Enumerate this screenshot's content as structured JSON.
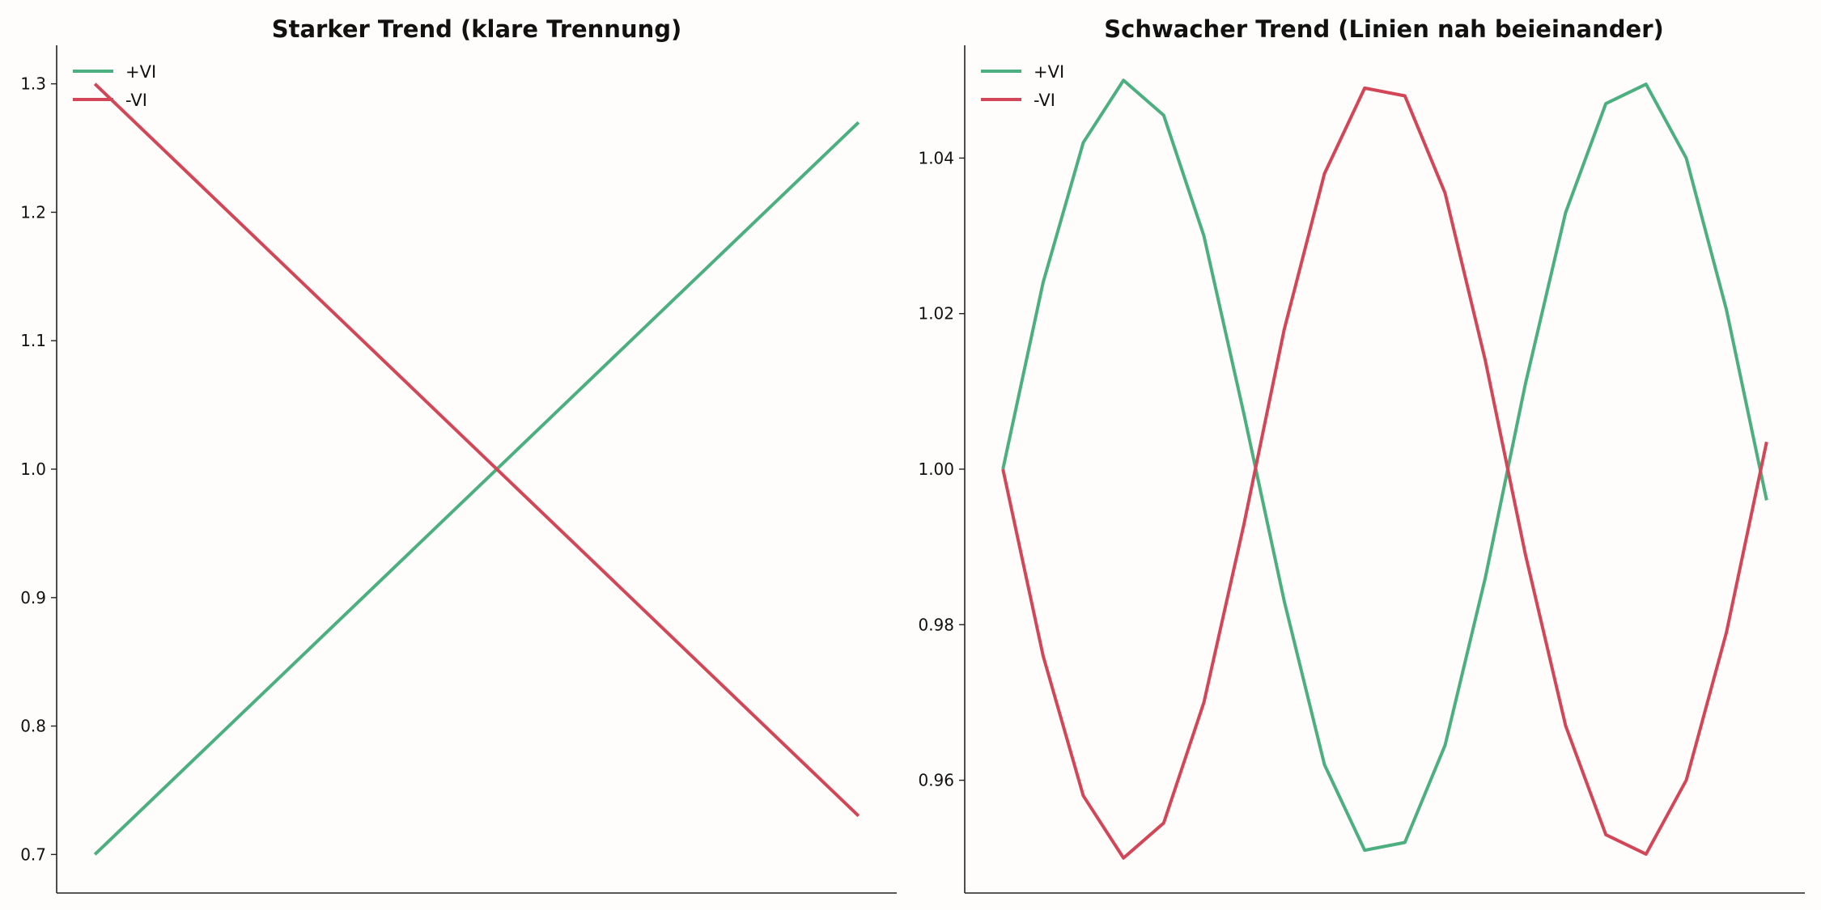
{
  "colors": {
    "plus_vi": "#4caf7f",
    "minus_vi": "#d34657"
  },
  "chart_data": [
    {
      "type": "line",
      "title": "Starker Trend (klare Trennung)",
      "xlabel": "",
      "ylabel": "",
      "x": [
        0,
        1
      ],
      "xlim": [
        -0.05,
        1.05
      ],
      "ylim": [
        0.67,
        1.33
      ],
      "yticks": [
        0.7,
        0.8,
        0.9,
        1.0,
        1.1,
        1.2,
        1.3
      ],
      "ytick_labels": [
        "0.7",
        "0.8",
        "0.9",
        "1.0",
        "1.1",
        "1.2",
        "1.3"
      ],
      "grid": false,
      "legend": "top-left",
      "series": [
        {
          "name": "+VI",
          "color": "#4caf7f",
          "values": [
            0.7,
            1.27
          ]
        },
        {
          "name": "-VI",
          "color": "#d34657",
          "values": [
            1.3,
            0.73
          ]
        }
      ]
    },
    {
      "type": "line",
      "title": "Schwacher Trend (Linien nah beieinander)",
      "xlabel": "",
      "ylabel": "",
      "x": [
        0,
        1,
        2,
        3,
        4,
        5,
        6,
        7,
        8,
        9,
        10,
        11,
        12,
        13,
        14,
        15,
        16,
        17,
        18,
        19
      ],
      "xlim": [
        -0.95,
        19.95
      ],
      "ylim": [
        0.9455,
        1.0545
      ],
      "yticks": [
        0.96,
        0.98,
        1.0,
        1.02,
        1.04
      ],
      "ytick_labels": [
        "0.96",
        "0.98",
        "1.00",
        "1.02",
        "1.04"
      ],
      "grid": false,
      "legend": "top-left",
      "series": [
        {
          "name": "+VI",
          "color": "#4caf7f",
          "values": [
            1.0,
            1.024,
            1.042,
            1.05,
            1.0455,
            1.03,
            1.007,
            0.983,
            0.962,
            0.951,
            0.952,
            0.9645,
            0.986,
            1.011,
            1.033,
            1.047,
            1.0495,
            1.04,
            1.0205,
            0.996
          ]
        },
        {
          "name": "-VI",
          "color": "#d34657",
          "values": [
            1.0,
            0.976,
            0.958,
            0.95,
            0.9545,
            0.97,
            0.993,
            1.018,
            1.038,
            1.049,
            1.048,
            1.0355,
            1.014,
            0.989,
            0.967,
            0.953,
            0.9505,
            0.96,
            0.979,
            1.0035
          ]
        }
      ]
    }
  ]
}
